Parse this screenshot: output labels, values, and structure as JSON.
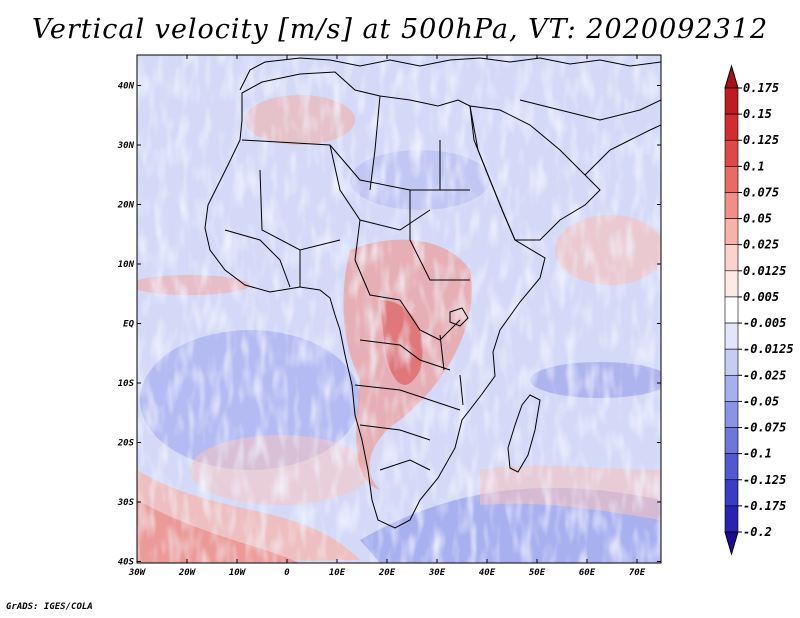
{
  "title": "Vertical velocity [m/s] at 500hPa, VT: 2020092312",
  "credit": "GrADS: IGES/COLA",
  "map": {
    "lat_labels": [
      "40N",
      "30N",
      "20N",
      "10N",
      "EQ",
      "10S",
      "20S",
      "30S",
      "40S"
    ],
    "lon_labels": [
      "30W",
      "20W",
      "10W",
      "0",
      "10E",
      "20E",
      "30E",
      "40E",
      "50E",
      "60E",
      "70E"
    ],
    "lon_range": [
      -30,
      75
    ],
    "lat_range": [
      -40,
      45
    ]
  },
  "colorbar": {
    "labels": [
      "0.175",
      "0.15",
      "0.125",
      "0.1",
      "0.075",
      "0.05",
      "0.025",
      "0.0125",
      "0.005",
      "-0.005",
      "-0.0125",
      "-0.025",
      "-0.05",
      "-0.075",
      "-0.1",
      "-0.125",
      "-0.175",
      "-0.2"
    ],
    "colors": [
      "#a8101a",
      "#c01a22",
      "#d22c30",
      "#e04848",
      "#ea6a66",
      "#f28e88",
      "#f7b2ac",
      "#fbd2cc",
      "#fdeae6",
      "#ffffff",
      "#e3e6fb",
      "#c6ccf4",
      "#a7b0ee",
      "#8a94e6",
      "#6e76dd",
      "#5258d2",
      "#3a3cc6",
      "#2a22b0",
      "#1e0a96"
    ]
  },
  "field_colors": {
    "ocean_base": "#d6dbf7",
    "land_base": "#ccd1f3",
    "ascent_strong": "#c0282c",
    "ascent_weak": "#f2a8a4",
    "descent_strong": "#5a5fd4",
    "descent_weak": "#a8aeee"
  }
}
